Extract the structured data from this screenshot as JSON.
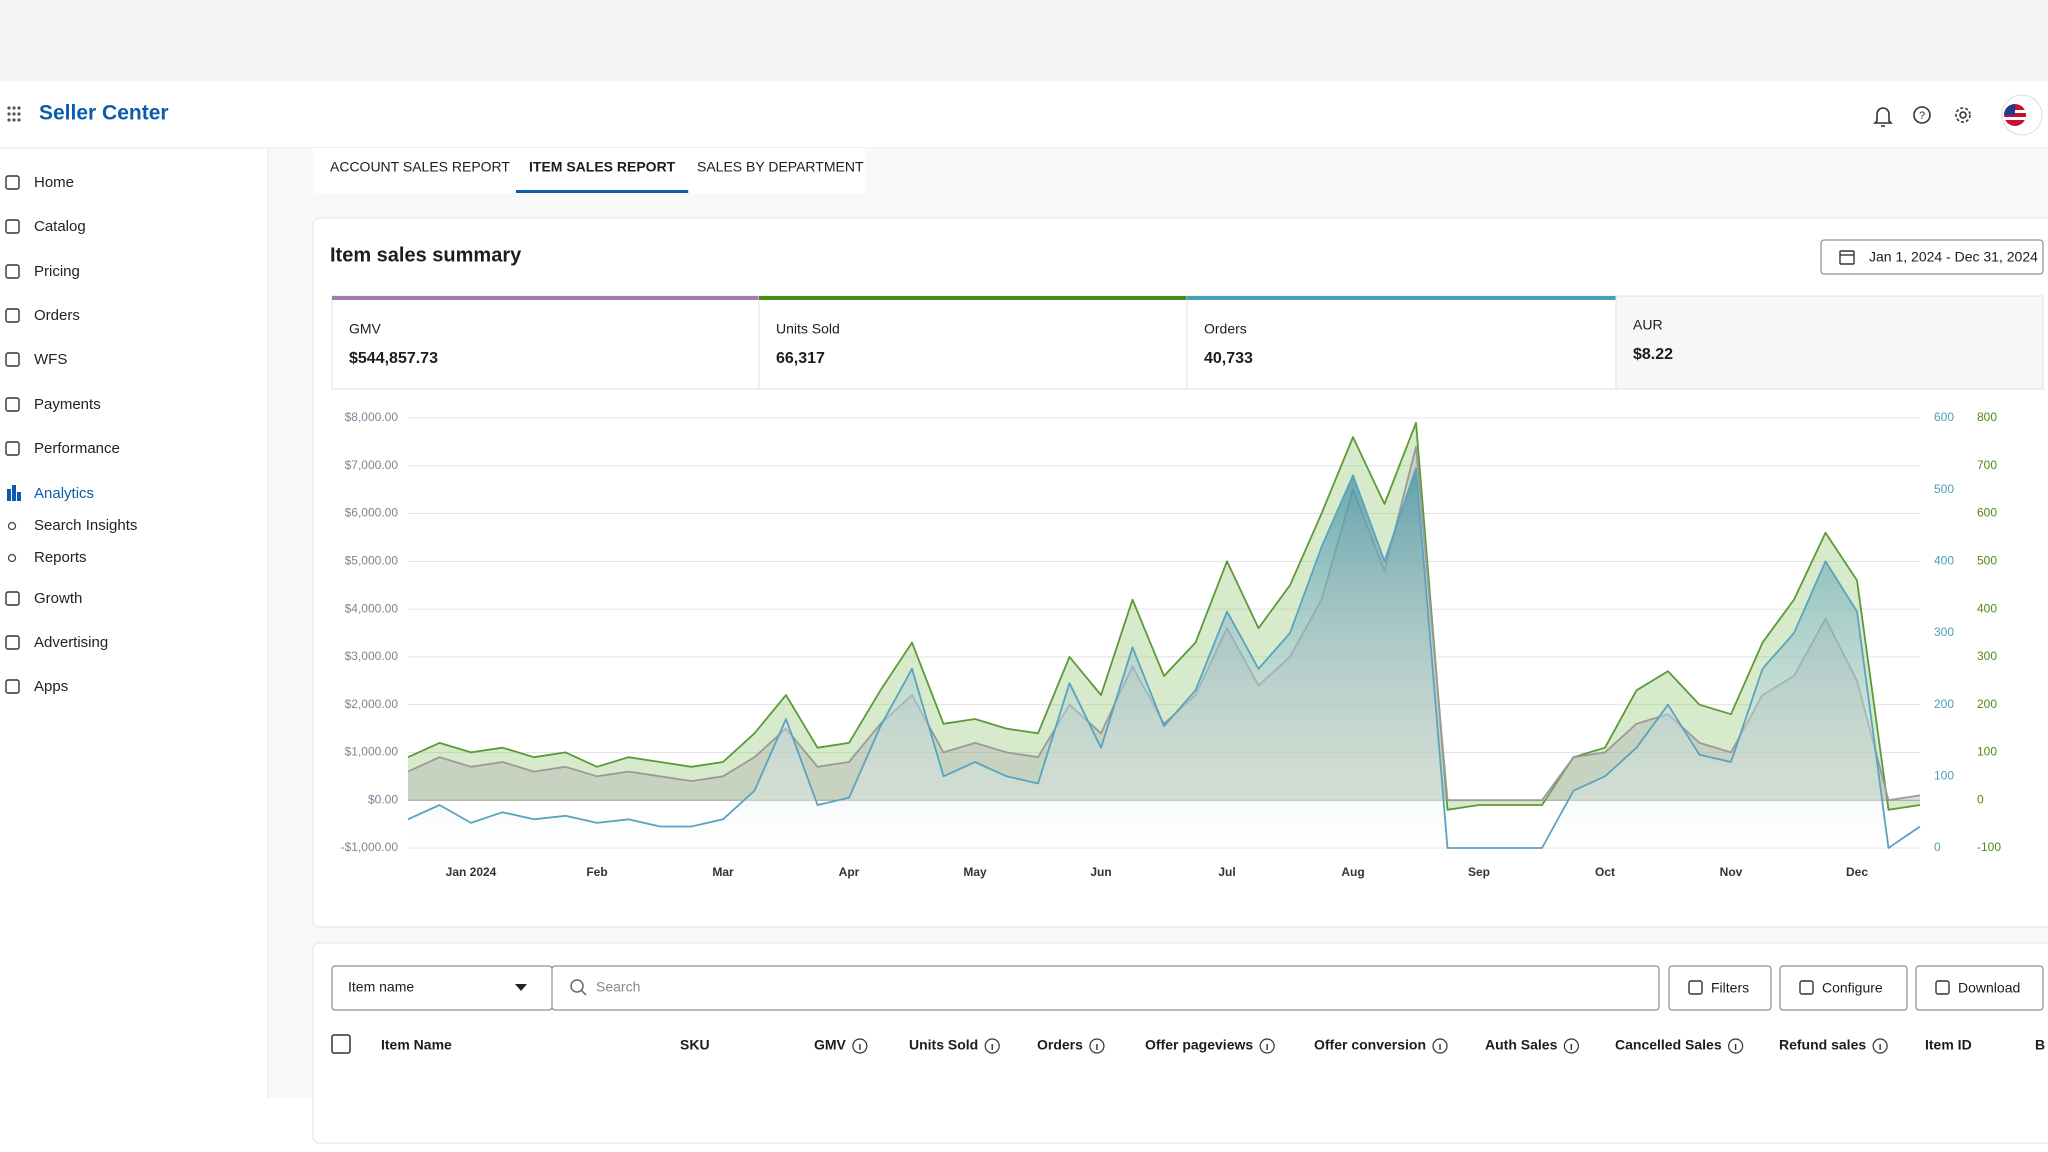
{
  "header": {
    "brand": "Seller Center"
  },
  "sidebar": {
    "items": [
      "Home",
      "Catalog",
      "Pricing",
      "Orders",
      "WFS",
      "Payments",
      "Performance",
      "Analytics",
      "Search Insights",
      "Reports",
      "Growth",
      "Advertising",
      "Apps"
    ],
    "active": 7,
    "sub_items": [
      8,
      9
    ]
  },
  "tabs": {
    "items": [
      "ACCOUNT SALES REPORT",
      "ITEM SALES REPORT",
      "SALES BY DEPARTMENT"
    ],
    "active": 1
  },
  "summary": {
    "title": "Item sales summary",
    "date_range": "Jan 1, 2024 - Dec 31, 2024",
    "kpis": [
      {
        "label": "GMV",
        "value": "$544,857.73",
        "color": "#a07cb0"
      },
      {
        "label": "Units Sold",
        "value": "66,317",
        "color": "#4a8c1c"
      },
      {
        "label": "Orders",
        "value": "40,733",
        "color": "#4aa0b8"
      },
      {
        "label": "AUR",
        "value": "$8.22"
      }
    ]
  },
  "chart_data": {
    "type": "line",
    "x": [
      -0.5,
      -0.25,
      0,
      0.25,
      0.5,
      0.75,
      1,
      1.25,
      1.5,
      1.75,
      2,
      2.25,
      2.5,
      2.75,
      3,
      3.25,
      3.5,
      3.75,
      4,
      4.25,
      4.5,
      4.75,
      5,
      5.25,
      5.5,
      5.75,
      6,
      6.25,
      6.5,
      6.75,
      7,
      7.25,
      7.5,
      7.75,
      8,
      8.25,
      8.5,
      8.75,
      9,
      9.25,
      9.5,
      9.75,
      10,
      10.25,
      10.5,
      10.75,
      11,
      11.25,
      11.5
    ],
    "xlim": [
      -0.5,
      11.5
    ],
    "xticks": [
      {
        "value": 0,
        "label": "Jan 2024"
      },
      {
        "value": 1,
        "label": "Feb"
      },
      {
        "value": 2,
        "label": "Mar"
      },
      {
        "value": 3,
        "label": "Apr"
      },
      {
        "value": 4,
        "label": "May"
      },
      {
        "value": 5,
        "label": "Jun"
      },
      {
        "value": 6,
        "label": "Jul"
      },
      {
        "value": 7,
        "label": "Aug"
      },
      {
        "value": 8,
        "label": "Sep"
      },
      {
        "value": 9,
        "label": "Oct"
      },
      {
        "value": 10,
        "label": "Nov"
      },
      {
        "value": 11,
        "label": "Dec"
      }
    ],
    "ylim": [
      -1000,
      8000
    ],
    "yticks": [
      {
        "value": -1000,
        "label": "-$1,000.00"
      },
      {
        "value": 0,
        "label": "$0.00"
      },
      {
        "value": 1000,
        "label": "$1,000.00"
      },
      {
        "value": 2000,
        "label": "$2,000.00"
      },
      {
        "value": 3000,
        "label": "$3,000.00"
      },
      {
        "value": 4000,
        "label": "$4,000.00"
      },
      {
        "value": 5000,
        "label": "$5,000.00"
      },
      {
        "value": 6000,
        "label": "$6,000.00"
      },
      {
        "value": 7000,
        "label": "$7,000.00"
      },
      {
        "value": 8000,
        "label": "$8,000.00"
      }
    ],
    "y2lim": [
      0,
      600
    ],
    "y2ticks": [
      0,
      100,
      200,
      300,
      400,
      500,
      600
    ],
    "y3lim": [
      -100,
      800
    ],
    "y3ticks": [
      -100,
      0,
      100,
      200,
      300,
      400,
      500,
      600,
      700,
      800
    ],
    "grid": true,
    "series": [
      {
        "name": "Units Sold",
        "color": "#5b9a36",
        "axis": "y3",
        "values": [
          90,
          120,
          100,
          110,
          90,
          100,
          70,
          90,
          80,
          70,
          80,
          140,
          220,
          110,
          120,
          230,
          330,
          160,
          170,
          150,
          140,
          300,
          220,
          420,
          260,
          330,
          500,
          360,
          450,
          600,
          760,
          620,
          790,
          -20,
          -10,
          -10,
          -10,
          90,
          110,
          230,
          270,
          200,
          180,
          330,
          420,
          560,
          460,
          -20,
          -10
        ]
      },
      {
        "name": "GMV",
        "color": "#9a9a9a",
        "axis": "y",
        "values": [
          600,
          900,
          700,
          800,
          600,
          700,
          500,
          600,
          500,
          400,
          500,
          900,
          1500,
          700,
          800,
          1600,
          2200,
          1000,
          1200,
          1000,
          900,
          2000,
          1400,
          2800,
          1600,
          2200,
          3600,
          2400,
          3000,
          4200,
          6500,
          4800,
          7400,
          0,
          0,
          0,
          0,
          900,
          1000,
          1600,
          1800,
          1200,
          1000,
          2200,
          2600,
          3800,
          2500,
          0,
          100
        ]
      },
      {
        "name": "Orders",
        "color": "#5aa3bf",
        "axis": "y2",
        "values": [
          40,
          60,
          35,
          50,
          40,
          45,
          35,
          40,
          30,
          30,
          40,
          80,
          180,
          60,
          70,
          170,
          250,
          100,
          120,
          100,
          90,
          230,
          140,
          280,
          170,
          220,
          330,
          250,
          300,
          420,
          520,
          400,
          530,
          0,
          0,
          0,
          0,
          80,
          100,
          140,
          200,
          130,
          120,
          250,
          300,
          400,
          330,
          0,
          30
        ]
      }
    ]
  },
  "table": {
    "filter_field": "Item name",
    "search_placeholder": "Search",
    "buttons": [
      "Filters",
      "Configure",
      "Download"
    ],
    "columns": [
      {
        "name": "Item Name"
      },
      {
        "name": "SKU"
      },
      {
        "name": "GMV",
        "info": true
      },
      {
        "name": "Units Sold",
        "info": true
      },
      {
        "name": "Orders",
        "info": true
      },
      {
        "name": "Offer pageviews",
        "info": true
      },
      {
        "name": "Offer conversion",
        "info": true
      },
      {
        "name": "Auth Sales",
        "info": true
      },
      {
        "name": "Cancelled Sales",
        "info": true
      },
      {
        "name": "Refund sales",
        "info": true
      },
      {
        "name": "Item ID"
      },
      {
        "name": "B"
      }
    ]
  }
}
